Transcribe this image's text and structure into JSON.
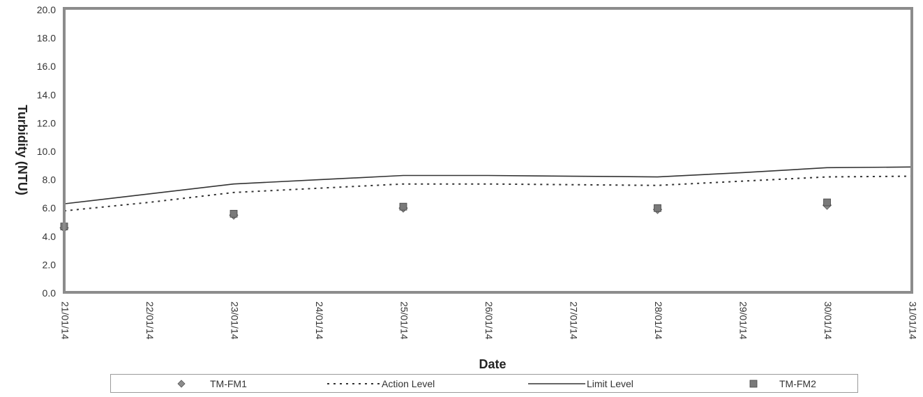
{
  "chart_data": {
    "type": "line",
    "title": "",
    "xlabel": "Date",
    "ylabel": "Turbidity (NTU)",
    "ylim": [
      0,
      20
    ],
    "yticks": [
      "0.0",
      "2.0",
      "4.0",
      "6.0",
      "8.0",
      "10.0",
      "12.0",
      "14.0",
      "16.0",
      "18.0",
      "20.0"
    ],
    "categories": [
      "21/01/14",
      "22/01/14",
      "23/01/14",
      "24/01/14",
      "25/01/14",
      "26/01/14",
      "27/01/14",
      "28/01/14",
      "29/01/14",
      "30/01/14",
      "31/01/14"
    ],
    "grid": false,
    "legend_position": "bottom",
    "series": [
      {
        "name": "TM-FM1",
        "kind": "scatter",
        "marker": "diamond",
        "color": "#8c8c8c",
        "x": [
          "21/01/14",
          "23/01/14",
          "25/01/14",
          "28/01/14",
          "30/01/14"
        ],
        "values": [
          4.6,
          5.5,
          6.0,
          5.9,
          6.2
        ]
      },
      {
        "name": "Action Level",
        "kind": "line",
        "style": "dotted",
        "color": "#333333",
        "x": [
          "21/01/14",
          "22/01/14",
          "23/01/14",
          "24/01/14",
          "25/01/14",
          "26/01/14",
          "27/01/14",
          "28/01/14",
          "29/01/14",
          "30/01/14",
          "31/01/14"
        ],
        "values": [
          5.8,
          6.4,
          7.1,
          7.4,
          7.7,
          7.7,
          7.65,
          7.6,
          7.9,
          8.2,
          8.25
        ]
      },
      {
        "name": "Limit Level",
        "kind": "line",
        "style": "solid",
        "color": "#333333",
        "x": [
          "21/01/14",
          "22/01/14",
          "23/01/14",
          "24/01/14",
          "25/01/14",
          "26/01/14",
          "27/01/14",
          "28/01/14",
          "29/01/14",
          "30/01/14",
          "31/01/14"
        ],
        "values": [
          6.3,
          7.0,
          7.7,
          8.0,
          8.3,
          8.3,
          8.25,
          8.2,
          8.5,
          8.85,
          8.9
        ]
      },
      {
        "name": "TM-FM2",
        "kind": "scatter",
        "marker": "square",
        "color": "#7a7a7a",
        "x": [
          "21/01/14",
          "23/01/14",
          "25/01/14",
          "28/01/14",
          "30/01/14"
        ],
        "values": [
          4.7,
          5.6,
          6.1,
          6.0,
          6.4
        ]
      }
    ]
  },
  "colors": {
    "plot_border": "#8c8c8c",
    "background": "#ffffff"
  }
}
